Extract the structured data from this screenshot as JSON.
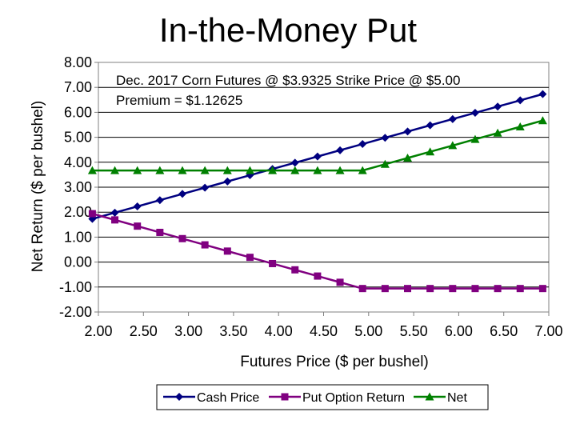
{
  "chart_data": {
    "type": "line",
    "title": "In-the-Money Put",
    "xlabel": "Futures Price ($ per bushel)",
    "ylabel": "Net Return ($ per bushel)",
    "xlim": [
      2.0,
      7.0
    ],
    "ylim": [
      -2.0,
      8.0
    ],
    "x_ticks": [
      "2.00",
      "2.50",
      "3.00",
      "3.50",
      "4.00",
      "4.50",
      "5.00",
      "5.50",
      "6.00",
      "6.50",
      "7.00"
    ],
    "y_ticks": [
      "8.00",
      "7.00",
      "6.00",
      "5.00",
      "4.00",
      "3.00",
      "2.00",
      "1.00",
      "0.00",
      "-1.00",
      "-2.00"
    ],
    "annotations": [
      "Dec. 2017 Corn Futures @ $3.9325   Strike Price @ $5.00",
      "Premium = $1.12625"
    ],
    "grid": true,
    "legend_position": "bottom",
    "x": [
      1.9325,
      2.1825,
      2.4325,
      2.6825,
      2.9325,
      3.1825,
      3.4325,
      3.6825,
      3.9325,
      4.1825,
      4.4325,
      4.6825,
      4.9325,
      5.1825,
      5.4325,
      5.6825,
      5.9325,
      6.1825,
      6.4325,
      6.6825,
      6.9325
    ],
    "series": [
      {
        "name": "Cash Price",
        "color": "#000080",
        "marker": "diamond",
        "values": [
          1.73,
          1.98,
          2.23,
          2.48,
          2.73,
          2.98,
          3.23,
          3.48,
          3.73,
          3.98,
          4.23,
          4.48,
          4.73,
          4.98,
          5.23,
          5.48,
          5.73,
          5.98,
          6.23,
          6.48,
          6.73
        ]
      },
      {
        "name": "Put Option Return",
        "color": "#800080",
        "marker": "square",
        "values": [
          1.94,
          1.69,
          1.44,
          1.19,
          0.94,
          0.69,
          0.44,
          0.19,
          -0.06,
          -0.31,
          -0.56,
          -0.81,
          -1.06,
          -1.06,
          -1.06,
          -1.06,
          -1.06,
          -1.06,
          -1.06,
          -1.06,
          -1.06
        ]
      },
      {
        "name": "Net",
        "color": "#008000",
        "marker": "triangle",
        "values": [
          3.67,
          3.67,
          3.67,
          3.67,
          3.67,
          3.67,
          3.67,
          3.67,
          3.67,
          3.67,
          3.67,
          3.67,
          3.67,
          3.92,
          4.17,
          4.42,
          4.67,
          4.92,
          5.17,
          5.42,
          5.67
        ]
      }
    ]
  }
}
